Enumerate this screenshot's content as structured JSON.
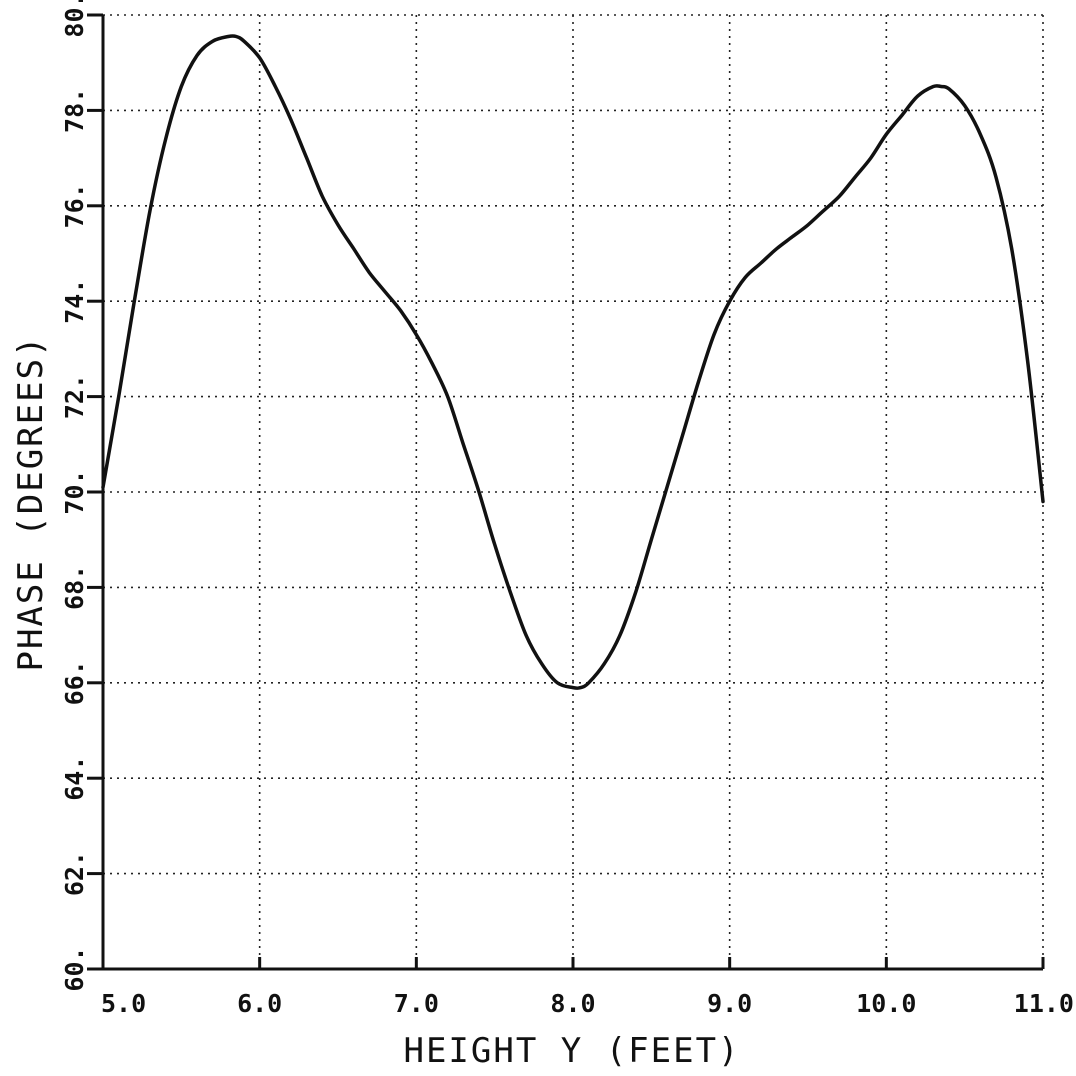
{
  "chart_data": {
    "type": "line",
    "title": "",
    "xlabel": "HEIGHT Y (FEET)",
    "ylabel": "PHASE (DEGREES)",
    "xlim": [
      5.0,
      11.0
    ],
    "ylim": [
      60.0,
      80.0
    ],
    "x_ticks": [
      5.0,
      6.0,
      7.0,
      8.0,
      9.0,
      10.0,
      11.0
    ],
    "x_tick_labels": [
      "5.0",
      "6.0",
      "7.0",
      "8.0",
      "9.0",
      "10.0",
      "11.0"
    ],
    "y_ticks": [
      60,
      62,
      64,
      66,
      68,
      70,
      72,
      74,
      76,
      78,
      80
    ],
    "y_tick_labels": [
      "60.",
      "62.",
      "64.",
      "66.",
      "68.",
      "70.",
      "72.",
      "74.",
      "76.",
      "78.",
      "80."
    ],
    "grid": true,
    "line_color": "#111111",
    "series": [
      {
        "x": [
          5.0,
          5.1,
          5.2,
          5.3,
          5.4,
          5.5,
          5.6,
          5.7,
          5.8,
          5.85,
          5.9,
          6.0,
          6.1,
          6.2,
          6.3,
          6.4,
          6.5,
          6.6,
          6.7,
          6.8,
          6.9,
          7.0,
          7.1,
          7.2,
          7.3,
          7.4,
          7.5,
          7.6,
          7.7,
          7.8,
          7.9,
          8.0,
          8.05,
          8.1,
          8.2,
          8.3,
          8.4,
          8.5,
          8.6,
          8.7,
          8.8,
          8.9,
          9.0,
          9.1,
          9.2,
          9.3,
          9.4,
          9.5,
          9.6,
          9.7,
          9.8,
          9.9,
          10.0,
          10.1,
          10.2,
          10.3,
          10.35,
          10.4,
          10.5,
          10.6,
          10.7,
          10.8,
          10.9,
          11.0
        ],
        "y": [
          70.1,
          72.0,
          74.0,
          75.9,
          77.4,
          78.5,
          79.15,
          79.45,
          79.55,
          79.55,
          79.45,
          79.1,
          78.5,
          77.8,
          77.0,
          76.2,
          75.6,
          75.1,
          74.6,
          74.2,
          73.8,
          73.3,
          72.7,
          72.0,
          71.0,
          70.0,
          68.9,
          67.9,
          67.0,
          66.4,
          66.0,
          65.9,
          65.9,
          66.0,
          66.4,
          67.0,
          67.9,
          69.0,
          70.1,
          71.2,
          72.3,
          73.3,
          74.0,
          74.5,
          74.8,
          75.1,
          75.35,
          75.6,
          75.9,
          76.2,
          76.6,
          77.0,
          77.5,
          77.9,
          78.3,
          78.5,
          78.5,
          78.45,
          78.1,
          77.5,
          76.6,
          75.1,
          72.8,
          69.8
        ]
      }
    ]
  }
}
